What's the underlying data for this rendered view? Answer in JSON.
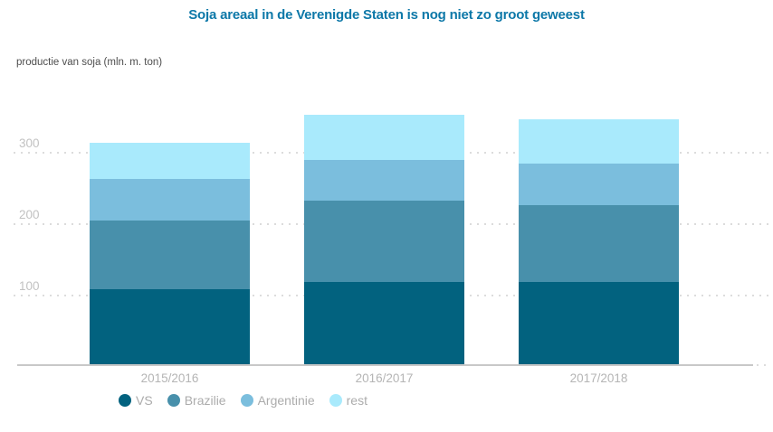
{
  "colors": {
    "background": "#ffffff",
    "title": "#0d78a8",
    "axis_label": "#4d4d4d",
    "tick_label": "#c2c2c2",
    "category_label": "#b5b5b5",
    "legend_label": "#acacac",
    "axis_line": "#c8c8c8",
    "gridline": "#dcdcdc"
  },
  "chart_data": {
    "type": "bar",
    "stacked": true,
    "title": "Soja areaal in de Verenigde Staten is nog niet zo groot geweest",
    "ylabel": "productie van soja (mln. m. ton)",
    "categories": [
      "2015/2016",
      "2016/2017",
      "2017/2018"
    ],
    "series": [
      {
        "name": "VS",
        "color": "#02627f",
        "values": [
          107,
          116,
          116
        ]
      },
      {
        "name": "Brazilie",
        "color": "#4890ab",
        "values": [
          96,
          114,
          108
        ]
      },
      {
        "name": "Argentinie",
        "color": "#7bbedd",
        "values": [
          58,
          58,
          58
        ]
      },
      {
        "name": "rest",
        "color": "#a9eafc",
        "values": [
          50,
          63,
          63
        ]
      }
    ],
    "totals": [
      311,
      351,
      345
    ],
    "yticks": [
      100,
      200,
      300
    ],
    "ylim": [
      0,
      380
    ],
    "grid": "dotted-horizontal",
    "legend_position": "bottom-left"
  }
}
